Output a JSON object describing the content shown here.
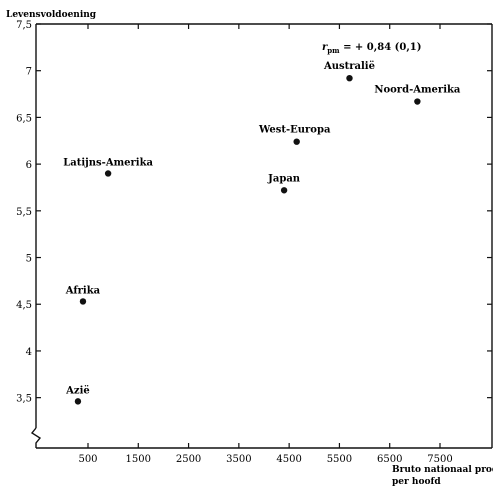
{
  "chart_data": {
    "type": "scatter",
    "title": "",
    "ylabel": "Levensvoldoening",
    "xlabel_line1": "Bruto nationaal produkt",
    "xlabel_line2": "per hoofd",
    "annotation": "r = + 0,84 (0,1)",
    "annotation_r": "r",
    "annotation_sub": "pm",
    "annotation_rest": " = + 0,84 (0,1)",
    "xlim": [
      0,
      8000
    ],
    "ylim": [
      3.25,
      7.5
    ],
    "y_axis_break": true,
    "x_ticks": [
      500,
      1500,
      2500,
      3500,
      4500,
      5500,
      6500,
      7500
    ],
    "x_tick_labels": [
      "500",
      "1500",
      "2500",
      "3500",
      "4500",
      "5500",
      "6500",
      "7500"
    ],
    "y_ticks": [
      3.5,
      4,
      4.5,
      5,
      5.5,
      6,
      6.5,
      7,
      7.5
    ],
    "y_tick_labels": [
      "3,5",
      "4",
      "4,5",
      "5",
      "5,5",
      "6",
      "6,5",
      "7",
      "7,5"
    ],
    "grid": false,
    "points": [
      {
        "label": "Azië",
        "x": 300,
        "y": 3.46
      },
      {
        "label": "Afrika",
        "x": 400,
        "y": 4.53
      },
      {
        "label": "Latijns-Amerika",
        "x": 900,
        "y": 5.9
      },
      {
        "label": "Japan",
        "x": 4400,
        "y": 5.72
      },
      {
        "label": "West-Europa",
        "x": 4650,
        "y": 6.24
      },
      {
        "label": "Australië",
        "x": 5700,
        "y": 6.92
      },
      {
        "label": "Noord-Amerika",
        "x": 7050,
        "y": 6.67
      }
    ]
  }
}
